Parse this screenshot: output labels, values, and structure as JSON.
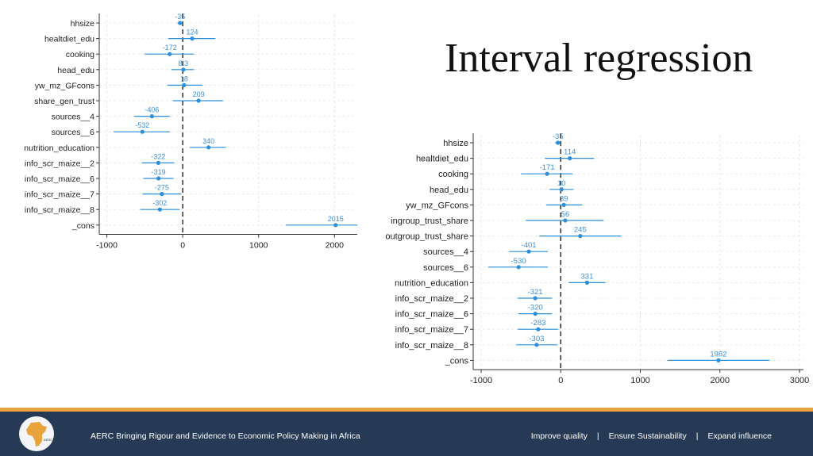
{
  "slide": {
    "title": "Interval regression"
  },
  "footer": {
    "tagline": "AERC Bringing Rigour and Evidence to Economic Policy Making in Africa",
    "links": [
      "Improve quality",
      "Ensure Sustainability",
      "Expand influence"
    ],
    "separator": "|",
    "logo_text": "AERC CREA"
  },
  "colors": {
    "point": "#2b8fd9",
    "ci": "#2b8fd9",
    "label": "#3b8fd6",
    "zero_line": "#222222",
    "footer_bg": "#273a55",
    "footer_stripe": "#e8a33d"
  },
  "chart_data": [
    {
      "type": "scatter",
      "variant": "coefficient-plot",
      "title": "",
      "xlabel": "",
      "ylabel": "",
      "xlim": [
        -1100,
        2300
      ],
      "xticks": [
        -1000,
        0,
        1000,
        2000
      ],
      "grid": true,
      "reference_line": 0,
      "categories": [
        "hhsize",
        "healtdiet_edu",
        "cooking",
        "head_edu",
        "yw_mz_GFcons",
        "share_gen_trust",
        "sources__4",
        "sources__6",
        "nutrition_education",
        "info_scr_maize__2",
        "info_scr_maize__6",
        "info_scr_maize__7",
        "info_scr_maize__8",
        "_cons"
      ],
      "estimates": [
        -35,
        124,
        -172,
        8.3,
        18,
        209,
        -406,
        -532,
        340,
        -322,
        -319,
        -275,
        -302,
        2015
      ],
      "labels": [
        "-35",
        "124",
        "-172",
        "8.3",
        "18",
        "209",
        "-406",
        "-532",
        "340",
        "-322",
        "-319",
        "-275",
        "-302",
        "2015"
      ],
      "ci_low": [
        -70,
        -190,
        -500,
        -150,
        -200,
        -130,
        -640,
        -910,
        90,
        -540,
        -520,
        -530,
        -560,
        1360
      ],
      "ci_high": [
        0,
        430,
        150,
        150,
        260,
        530,
        -170,
        -170,
        570,
        -110,
        -120,
        -20,
        -40,
        2300
      ]
    },
    {
      "type": "scatter",
      "variant": "coefficient-plot",
      "title": "",
      "xlabel": "",
      "ylabel": "",
      "xlim": [
        -1100,
        3050
      ],
      "xticks": [
        -1000,
        0,
        1000,
        2000,
        3000
      ],
      "grid": true,
      "reference_line": 0,
      "categories": [
        "hhsize",
        "healtdiet_edu",
        "cooking",
        "head_edu",
        "yw_mz_GFcons",
        "ingroup_trust_share",
        "outgroup_trust_share",
        "sources__4",
        "sources__6",
        "nutrition_education",
        "info_scr_maize__2",
        "info_scr_maize__6",
        "info_scr_maize__7",
        "info_scr_maize__8",
        "_cons"
      ],
      "estimates": [
        -35,
        114,
        -171,
        10,
        39,
        56,
        245,
        -401,
        -530,
        331,
        -321,
        -320,
        -283,
        -303,
        1982
      ],
      "labels": [
        "-35",
        "114",
        "-171",
        "10",
        "39",
        "56",
        "245",
        "-401",
        "-530",
        "331",
        "-321",
        "-320",
        "-283",
        "-303",
        "1982"
      ],
      "ci_low": [
        -70,
        -200,
        -500,
        -140,
        -180,
        -440,
        -270,
        -650,
        -910,
        100,
        -540,
        -530,
        -540,
        -560,
        1340
      ],
      "ci_high": [
        0,
        420,
        150,
        160,
        270,
        540,
        760,
        -160,
        -160,
        560,
        -110,
        -110,
        -30,
        -40,
        2620
      ]
    }
  ]
}
